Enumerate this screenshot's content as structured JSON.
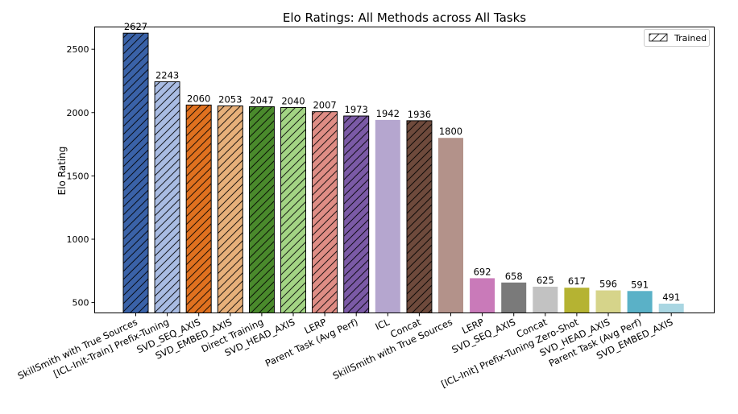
{
  "chart_data": {
    "type": "bar",
    "title": "Elo Ratings: All Methods across All Tasks",
    "xlabel": "",
    "ylabel": "Elo Rating",
    "ylim": [
      418,
      2676
    ],
    "yticks": [
      500,
      1000,
      1500,
      2000,
      2500
    ],
    "grid": false,
    "legend": {
      "placement": "top-right",
      "label": "Trained"
    },
    "categories": [
      "SkillSmith with True Sources",
      "[ICL-Init-Train] Prefix-Tuning",
      "SVD_SEQ_AXIS",
      "SVD_EMBED_AXIS",
      "Direct Training",
      "SVD_HEAD_AXIS",
      "LERP",
      "Parent Task (Avg Perf)",
      "ICL",
      "Concat",
      "SkillSmith with True Sources",
      "LERP",
      "SVD_SEQ_AXIS",
      "Concat",
      "[ICL-Init] Prefix-Tuning Zero-Shot",
      "SVD_HEAD_AXIS",
      "Parent Task (Avg Perf)",
      "SVD_EMBED_AXIS"
    ],
    "values": [
      2627,
      2243,
      2060,
      2053,
      2047,
      2040,
      2007,
      1973,
      1942,
      1936,
      1800,
      692,
      658,
      625,
      617,
      596,
      591,
      491
    ],
    "trained": [
      true,
      true,
      true,
      true,
      true,
      true,
      true,
      true,
      false,
      true,
      false,
      false,
      false,
      false,
      false,
      false,
      false,
      false
    ],
    "colors": [
      "#3a62a8",
      "#a9bce3",
      "#e0711f",
      "#e7b07a",
      "#4a8a2c",
      "#a3d484",
      "#df8d85",
      "#7b5aa6",
      "#b5a6cf",
      "#6e4a3c",
      "#b3928a",
      "#c97ab9",
      "#7a7a7a",
      "#c2c2c2",
      "#b5b332",
      "#d6d48a",
      "#5ab1c7",
      "#a9d6e2"
    ]
  }
}
